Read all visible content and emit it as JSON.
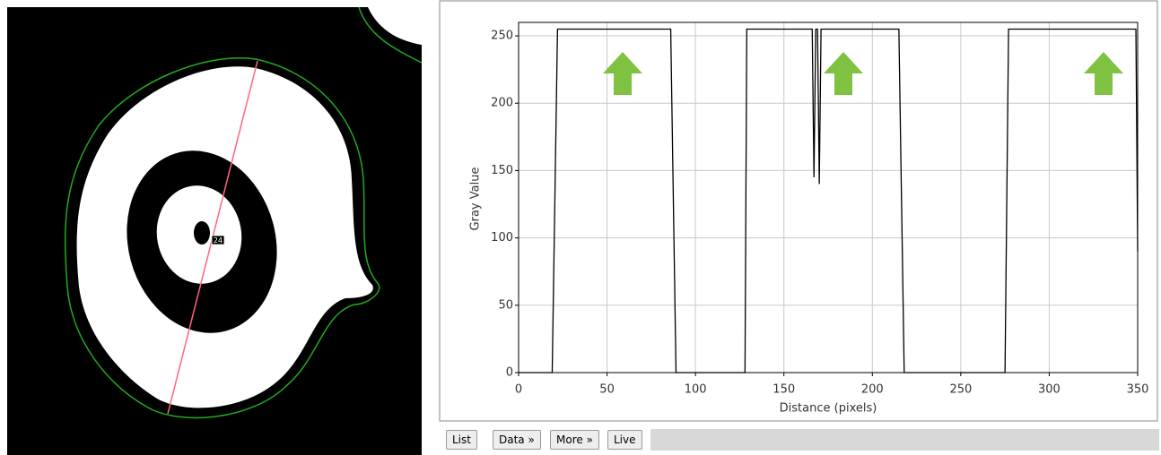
{
  "image_label": "24",
  "buttons": [
    "List",
    "Data »",
    "More »",
    "Live"
  ],
  "chart_data": {
    "type": "line",
    "x_label": "Distance (pixels)",
    "y_label": "Gray Value",
    "x": [
      0,
      19,
      22,
      86,
      89,
      128,
      129,
      165,
      166,
      167,
      168,
      169,
      170,
      171,
      172,
      215,
      218,
      275,
      277,
      349,
      350
    ],
    "values": [
      0,
      0,
      255,
      255,
      0,
      0,
      255,
      255,
      255,
      145,
      255,
      255,
      140,
      255,
      255,
      255,
      0,
      0,
      255,
      255,
      90
    ],
    "color": "#000000",
    "xlim": [
      0,
      350
    ],
    "xticks": [
      0,
      50,
      100,
      150,
      200,
      250,
      300,
      350
    ],
    "ylim": [
      0,
      260
    ],
    "yticks": [
      0,
      50,
      100,
      150,
      200,
      250
    ],
    "grid": true
  }
}
